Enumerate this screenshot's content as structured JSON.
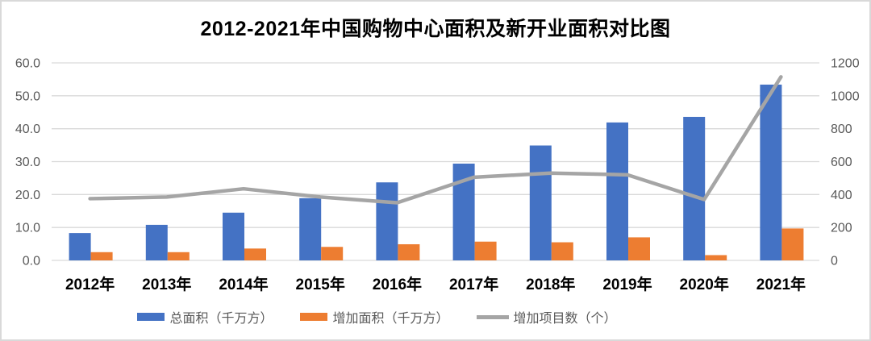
{
  "chart_data": {
    "type": "combo",
    "title": "2012-2021年中国购物中心面积及新开业面积对比图",
    "categories": [
      "2012年",
      "2013年",
      "2014年",
      "2015年",
      "2016年",
      "2017年",
      "2018年",
      "2019年",
      "2020年",
      "2021年"
    ],
    "series": [
      {
        "name": "总面积（千万方）",
        "type": "bar",
        "axis": "left",
        "color": "#4472C4",
        "values": [
          8.3,
          10.8,
          14.5,
          18.9,
          23.7,
          29.4,
          34.9,
          41.9,
          43.6,
          53.4
        ]
      },
      {
        "name": "增加面积（千万方）",
        "type": "bar",
        "axis": "left",
        "color": "#ED7D31",
        "values": [
          2.5,
          2.5,
          3.6,
          4.1,
          4.9,
          5.7,
          5.5,
          7.0,
          1.6,
          9.7
        ]
      },
      {
        "name": "增加项目数（个）",
        "type": "line",
        "axis": "right",
        "color": "#A5A5A5",
        "values": [
          375,
          385,
          435,
          385,
          350,
          505,
          530,
          520,
          370,
          1115
        ]
      }
    ],
    "axis_left": {
      "min": 0,
      "max": 60,
      "ticks": [
        "0.0",
        "10.0",
        "20.0",
        "30.0",
        "40.0",
        "50.0",
        "60.0"
      ]
    },
    "axis_right": {
      "min": 0,
      "max": 1200,
      "ticks": [
        "0",
        "200",
        "400",
        "600",
        "800",
        "1000",
        "1200"
      ]
    },
    "grid": true,
    "legend_position": "bottom"
  },
  "colors": {
    "background": "#FFFFFF",
    "frame_border": "#D9D9D9",
    "gridline": "#D9D9D9",
    "axis_text": "#595959",
    "category_text": "#000000",
    "title_text": "#000000"
  }
}
